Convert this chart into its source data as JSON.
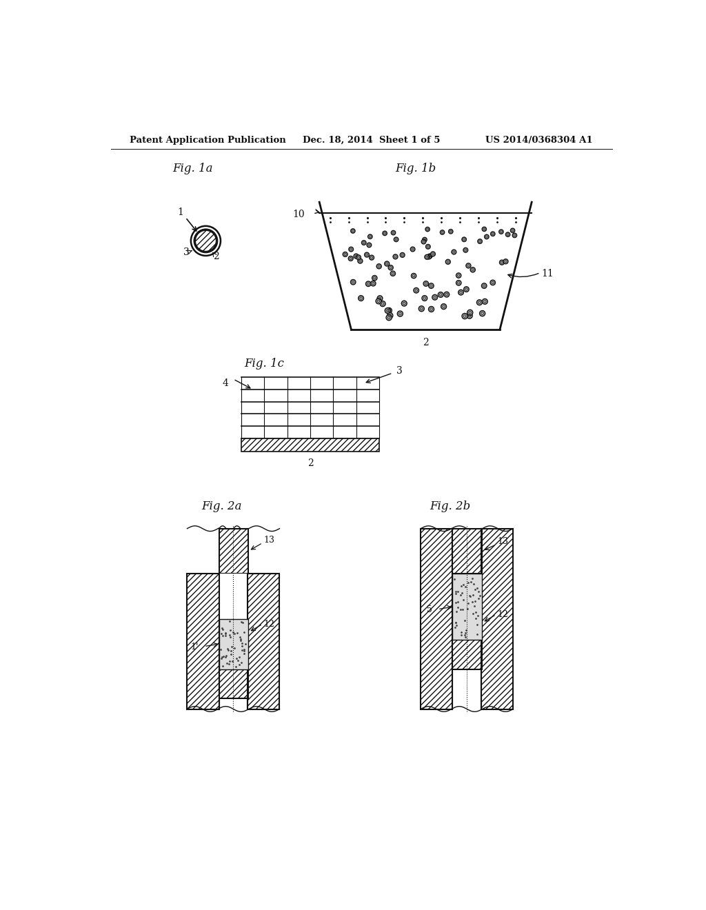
{
  "bg_color": "#ffffff",
  "text_color": "#111111",
  "header_left": "Patent Application Publication",
  "header_center": "Dec. 18, 2014  Sheet 1 of 5",
  "header_right": "US 2014/0368304 A1",
  "line_color": "#111111",
  "fig1a_label": "Fig. 1a",
  "fig1b_label": "Fig. 1b",
  "fig1c_label": "Fig. 1c",
  "fig2a_label": "Fig. 2a",
  "fig2b_label": "Fig. 2b"
}
